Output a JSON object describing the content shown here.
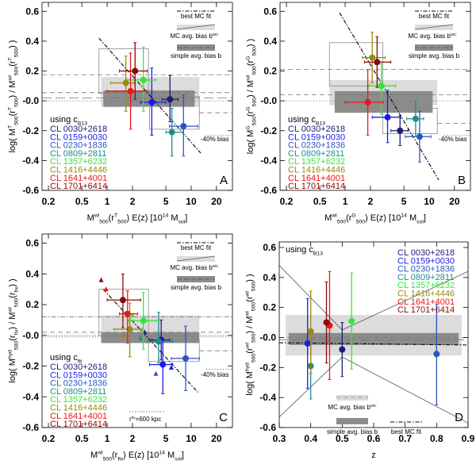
{
  "colors": {
    "CL 0030+2618": "#1c1c7a",
    "CL 0159+0030": "#1a1aee",
    "CL 0230+1836": "#2a55c0",
    "CL 0809+2811": "#1e8c8c",
    "CL 1357+6232": "#33e633",
    "CL 1416+4446": "#9a8a10",
    "CL 1641+4001": "#ee1515",
    "CL 1701+6414": "#8a0a0a",
    "light_band": "#dcdcdc",
    "dark_band": "#8c8c8c"
  },
  "legend_labels": {
    "best_fit": "best MC fit",
    "mc_bias": "MC avg. bias b^{MC}",
    "simple_bias": "simple avg. bias b",
    "bias40": "-40% bias",
    "rfix": "r^{fix}=600 kpc"
  },
  "chart_data": [
    {
      "panel": "A",
      "type": "scatter",
      "xscale": "log",
      "xlim": [
        0.168,
        31
      ],
      "ylim": [
        -0.6,
        0.66
      ],
      "xticks": [
        0.2,
        0.5,
        1,
        2,
        5,
        10,
        20
      ],
      "xtick_labels": [
        "0.2",
        "0.5",
        "1",
        "2",
        "5",
        "10",
        "20"
      ],
      "yticks": [
        0.6,
        0.4,
        0.2,
        0.0,
        -0.2,
        -0.4,
        -0.6
      ],
      "ytick_labels": [
        "0.6",
        "0.4",
        "0.2",
        "-0.0",
        "-0.2",
        "-0.4",
        "-0.6"
      ],
      "xlabel": "M^{wl}_{500}(r^{T}_{500}) E(z)  [10^{14} M_{sol}]",
      "ylabel": "log( M^{T}_{500}(r^{T}_{500}) / M^{wl}_{500}(r^{T}_{500}) )",
      "legend_title": "using c_{B13}",
      "points": [
        {
          "name": "CL 0030+2618",
          "x": 5.6,
          "xlo": 4.5,
          "xhi": 7.0,
          "y": 0.01,
          "ylo": -0.14,
          "yhi": 0.17
        },
        {
          "name": "CL 0159+0030",
          "x": 3.4,
          "xlo": 2.5,
          "xhi": 5.0,
          "y": -0.01,
          "ylo": -0.23,
          "yhi": 0.22
        },
        {
          "name": "CL 0230+1836",
          "x": 8.1,
          "xlo": 5.5,
          "xhi": 12.0,
          "y": -0.17,
          "ylo": -0.37,
          "yhi": 0.04
        },
        {
          "name": "CL 0809+2811",
          "x": 5.9,
          "xlo": 5.0,
          "xhi": 8.0,
          "y": -0.21,
          "ylo": -0.37,
          "yhi": -0.05
        },
        {
          "name": "CL 1357+6232",
          "x": 2.7,
          "xlo": 1.7,
          "xhi": 3.8,
          "y": 0.14,
          "ylo": -0.07,
          "yhi": 0.36
        },
        {
          "name": "CL 1416+4446",
          "x": 1.67,
          "xlo": 1.1,
          "xhi": 2.1,
          "y": 0.12,
          "ylo": -0.07,
          "yhi": 0.3
        },
        {
          "name": "CL 1641+4001",
          "x": 1.9,
          "xlo": 1.0,
          "xhi": 3.0,
          "y": 0.065,
          "ylo": -0.19,
          "yhi": 0.32
        },
        {
          "name": "CL 1701+6414",
          "x": 2.15,
          "xlo": 1.4,
          "xhi": 3.0,
          "y": 0.2,
          "ylo": 0.01,
          "yhi": 0.39
        }
      ],
      "bands": [
        {
          "kind": "light",
          "x": [
            0.85,
            12.5
          ],
          "y": [
            -0.04,
            0.16
          ]
        },
        {
          "kind": "dark",
          "x": [
            0.9,
            11
          ],
          "y": [
            -0.04,
            0.07
          ]
        }
      ],
      "boxes": [
        {
          "x": [
            0.8,
            3.1
          ],
          "y": [
            0.05,
            0.35
          ]
        },
        {
          "x": [
            3.2,
            12.5
          ],
          "y": [
            -0.19,
            0.03
          ]
        }
      ],
      "hlines": [
        {
          "y": 0.175,
          "style": "dash"
        },
        {
          "y": 0.055,
          "style": "dash"
        },
        {
          "y": 0.02,
          "style": "longdash"
        },
        {
          "y": 0.0,
          "style": "dot"
        },
        {
          "y": -0.08,
          "style": "dash",
          "from": 12.5
        },
        {
          "y": -0.23,
          "style": "dot",
          "from": 15
        }
      ],
      "fit": [
        [
          0.8,
          0.42
        ],
        [
          13,
          -0.35
        ]
      ],
      "panel_label": "A"
    },
    {
      "panel": "B",
      "type": "scatter",
      "xscale": "log",
      "xlim": [
        0.168,
        31
      ],
      "ylim": [
        -0.6,
        0.66
      ],
      "xticks": [
        0.2,
        0.5,
        1,
        2,
        5,
        10,
        20
      ],
      "xtick_labels": [
        "0.2",
        "0.5",
        "1",
        "2",
        "5",
        "10",
        "20"
      ],
      "yticks": [
        0.6,
        0.4,
        0.2,
        0.0,
        -0.2,
        -0.4,
        -0.6
      ],
      "ytick_labels": [
        "0.6",
        "0.4",
        "0.2",
        "-0.0",
        "-0.2",
        "-0.4",
        "-0.6"
      ],
      "xlabel": "M^{wl}_{500}(r^{G}_{500}) E(z)  [10^{14} M_{sol}]",
      "ylabel": "log( M^{G}_{500}(r^{G}_{500}) / M^{wl}_{500}(r^{G}_{500}) )",
      "legend_title": "using c_{B13}",
      "points": [
        {
          "name": "CL 0030+2618",
          "x": 4.5,
          "xlo": 3.5,
          "xhi": 5.6,
          "y": -0.2,
          "ylo": -0.3,
          "yhi": -0.1
        },
        {
          "name": "CL 0159+0030",
          "x": 3.2,
          "xlo": 2.1,
          "xhi": 4.6,
          "y": -0.11,
          "ylo": -0.28,
          "yhi": 0.07
        },
        {
          "name": "CL 0230+1836",
          "x": 7.7,
          "xlo": 5.2,
          "xhi": 10.5,
          "y": -0.24,
          "ylo": -0.41,
          "yhi": -0.07
        },
        {
          "name": "CL 0809+2811",
          "x": 6.9,
          "xlo": 5.4,
          "xhi": 8.6,
          "y": -0.12,
          "ylo": -0.24,
          "yhi": 0.0
        },
        {
          "name": "CL 1357+6232",
          "x": 2.7,
          "xlo": 1.9,
          "xhi": 4.0,
          "y": 0.1,
          "ylo": -0.09,
          "yhi": 0.25
        },
        {
          "name": "CL 1416+4446",
          "x": 2.1,
          "xlo": 1.6,
          "xhi": 3.0,
          "y": 0.29,
          "ylo": 0.12,
          "yhi": 0.46
        },
        {
          "name": "CL 1641+4001",
          "x": 1.86,
          "xlo": 1.0,
          "xhi": 2.8,
          "y": -0.01,
          "ylo": -0.23,
          "yhi": 0.21
        },
        {
          "name": "CL 1701+6414",
          "x": 2.4,
          "xlo": 1.7,
          "xhi": 3.5,
          "y": 0.26,
          "ylo": 0.09,
          "yhi": 0.43
        }
      ],
      "bands": [
        {
          "kind": "light",
          "x": [
            0.65,
            12.5
          ],
          "y": [
            -0.03,
            0.14
          ]
        },
        {
          "kind": "dark",
          "x": [
            0.75,
            11
          ],
          "y": [
            -0.08,
            0.065
          ]
        }
      ],
      "boxes": [
        {
          "x": [
            0.65,
            2.8
          ],
          "y": [
            0.1,
            0.39
          ]
        },
        {
          "x": [
            2.8,
            12.5
          ],
          "y": [
            -0.22,
            -0.05
          ]
        }
      ],
      "hlines": [
        {
          "y": 0.21,
          "style": "dash"
        },
        {
          "y": 0.04,
          "style": "dash"
        },
        {
          "y": 0.0,
          "style": "dot"
        },
        {
          "y": -0.15,
          "style": "dash",
          "from": 12.5
        },
        {
          "y": -0.23,
          "style": "dot",
          "from": 15
        }
      ],
      "fit": [
        [
          0.86,
          0.59
        ],
        [
          13,
          -0.53
        ]
      ],
      "panel_label": "B"
    },
    {
      "panel": "C",
      "type": "scatter",
      "xscale": "log",
      "xlim": [
        0.168,
        31
      ],
      "ylim": [
        -0.6,
        0.66
      ],
      "xticks": [
        0.2,
        0.5,
        1,
        2,
        5,
        10,
        20
      ],
      "xtick_labels": [
        "0.2",
        "0.5",
        "1",
        "2",
        "5",
        "10",
        "20"
      ],
      "yticks": [
        0.6,
        0.4,
        0.2,
        0.0,
        -0.2,
        -0.4,
        -0.6
      ],
      "ytick_labels": [
        "0.6",
        "0.4",
        "0.2",
        "-0.0",
        "-0.2",
        "-0.4",
        "-0.6"
      ],
      "xlabel": "M^{wl}_{500}(r_{fix}) E(z)  [10^{14} M_{sol}]",
      "ylabel": "log( M^{hyd}_{500}(r_{fix}) / M^{wl}_{500}(r_{fix}) )",
      "legend_title": "using c_{fit}",
      "points": [
        {
          "name": "CL 0030+2618",
          "x": 4.4,
          "xlo": 3.4,
          "xhi": 5.6,
          "y": -0.03,
          "ylo": -0.16,
          "yhi": 0.1
        },
        {
          "name": "CL 0159+0030",
          "x": 4.6,
          "xlo": 3.2,
          "xhi": 6.0,
          "y": -0.19,
          "ylo": -0.38,
          "yhi": -0.02
        },
        {
          "name": "CL 0230+1836",
          "x": 8.6,
          "xlo": 5.8,
          "xhi": 12.5,
          "y": -0.15,
          "ylo": -0.36,
          "yhi": 0.06
        },
        {
          "name": "CL 0809+2811",
          "x": 4.1,
          "xlo": 3.0,
          "xhi": 6.0,
          "y": -0.04,
          "ylo": -0.18,
          "yhi": 0.15
        },
        {
          "name": "CL 1357+6232",
          "x": 2.7,
          "xlo": 1.8,
          "xhi": 3.9,
          "y": 0.095,
          "ylo": -0.09,
          "yhi": 0.28
        },
        {
          "name": "CL 1416+4446",
          "x": 1.86,
          "xlo": 1.2,
          "xhi": 2.6,
          "y": 0.04,
          "ylo": -0.14,
          "yhi": 0.21
        },
        {
          "name": "CL 1641+4001",
          "x": 1.75,
          "xlo": 1.4,
          "xhi": 2.3,
          "y": 0.14,
          "ylo": -0.05,
          "yhi": 0.29
        },
        {
          "name": "CL 1701+6414",
          "x": 1.54,
          "xlo": 1.0,
          "xhi": 2.5,
          "y": 0.23,
          "ylo": 0.05,
          "yhi": 0.4
        }
      ],
      "triangles": [
        {
          "name": "CL 1701+6414",
          "x": 0.85,
          "y": 0.36
        },
        {
          "name": "CL 1641+4001",
          "x": 0.97,
          "y": 0.3
        },
        {
          "name": "CL 1357+6232",
          "x": 2.0,
          "y": 0.13
        },
        {
          "name": "CL 1416+4446",
          "x": 1.6,
          "y": 0.0
        },
        {
          "name": "CL 0030+2618",
          "x": 2.8,
          "y": 0.02
        },
        {
          "name": "CL 0809+2811",
          "x": 2.5,
          "y": -0.02
        },
        {
          "name": "CL 0230+1836",
          "x": 3.8,
          "y": -0.25
        },
        {
          "name": "CL 0159+0030",
          "x": 5.8,
          "y": -0.21
        }
      ],
      "bands": [
        {
          "kind": "light",
          "x": [
            0.85,
            12.5
          ],
          "y": [
            -0.05,
            0.13
          ]
        },
        {
          "kind": "dark",
          "x": [
            0.85,
            12.5
          ],
          "y": [
            -0.05,
            0.02
          ]
        }
      ],
      "boxes": [
        {
          "x": [
            0.8,
            3.1
          ],
          "y": [
            0.0,
            0.3
          ]
        },
        {
          "x": [
            3.1,
            12.5
          ],
          "y": [
            -0.17,
            -0.03
          ]
        }
      ],
      "hlines": [
        {
          "y": 0.12,
          "style": "dashdot"
        },
        {
          "y": 0.02,
          "style": "dash"
        },
        {
          "y": 0.0,
          "style": "dot"
        },
        {
          "y": -0.01,
          "style": "dot"
        },
        {
          "y": -0.1,
          "style": "dash",
          "from": 12.5
        },
        {
          "y": -0.22,
          "style": "dot",
          "from": 15
        }
      ],
      "fit": [
        [
          0.9,
          0.3
        ],
        [
          12,
          -0.37
        ]
      ],
      "panel_label": "C"
    },
    {
      "panel": "D",
      "type": "scatter",
      "xscale": "linear",
      "xlim": [
        0.3,
        0.9
      ],
      "ylim": [
        -0.6,
        0.637
      ],
      "xticks": [
        0.3,
        0.4,
        0.5,
        0.6,
        0.7,
        0.8,
        0.9
      ],
      "xtick_labels": [
        "0.3",
        "0.4",
        "0.5",
        "0.6",
        "0.7",
        "0.8",
        "0.9"
      ],
      "yticks": [
        0.6,
        0.4,
        0.2,
        0.0,
        -0.2,
        -0.4,
        -0.6
      ],
      "ytick_labels": [
        "0.6",
        "0.4",
        "0.2",
        "-0.0",
        "-0.2",
        "-0.4",
        "-0.6"
      ],
      "xlabel": "z",
      "ylabel": "log( M^{hyd}_{500}(r^{wl}_{500}) / M^{wl}_{500}(r^{wl}_{500}) )",
      "legend_title": "using c_{B13}",
      "points": [
        {
          "name": "CL 0030+2618",
          "x": 0.5,
          "y": -0.08,
          "ylo": -0.26,
          "yhi": 0.1
        },
        {
          "name": "CL 0159+0030",
          "x": 0.39,
          "y": -0.04,
          "ylo": -0.34,
          "yhi": 0.26
        },
        {
          "name": "CL 0230+1836",
          "x": 0.8,
          "y": -0.11,
          "ylo": -0.45,
          "yhi": 0.22
        },
        {
          "name": "CL 0809+2811",
          "x": 0.4,
          "y": -0.19,
          "ylo": -0.41,
          "yhi": 0.03
        },
        {
          "name": "CL 1357+6232",
          "x": 0.53,
          "y": 0.11,
          "ylo": -0.21,
          "yhi": 0.43
        },
        {
          "name": "CL 1416+4446",
          "x": 0.4,
          "y": 0.04,
          "ylo": -0.24,
          "yhi": 0.31
        },
        {
          "name": "CL 1641+4001",
          "x": 0.46,
          "y": 0.08,
          "ylo": -0.28,
          "yhi": 0.44
        },
        {
          "name": "CL 1701+6414",
          "x": 0.45,
          "y": 0.1,
          "ylo": -0.17,
          "yhi": 0.37
        }
      ],
      "bands": [
        {
          "kind": "light",
          "x": [
            0.32,
            0.88
          ],
          "y": [
            -0.12,
            0.15
          ]
        },
        {
          "kind": "dark",
          "x": [
            0.33,
            0.87
          ],
          "y": [
            -0.05,
            0.03
          ]
        }
      ],
      "polylines": [
        [
          [
            0.3,
            0.48
          ],
          [
            0.5,
            0.05
          ],
          [
            0.9,
            0.44
          ]
        ],
        [
          [
            0.3,
            -0.53
          ],
          [
            0.5,
            -0.13
          ],
          [
            0.9,
            -0.57
          ]
        ]
      ],
      "hlines": [
        {
          "y": 0.0,
          "style": "dash"
        },
        {
          "y": -0.015,
          "style": "longdash"
        }
      ],
      "fit": [
        [
          0.3,
          -0.035
        ],
        [
          0.9,
          -0.05
        ]
      ],
      "panel_label": "D"
    }
  ]
}
